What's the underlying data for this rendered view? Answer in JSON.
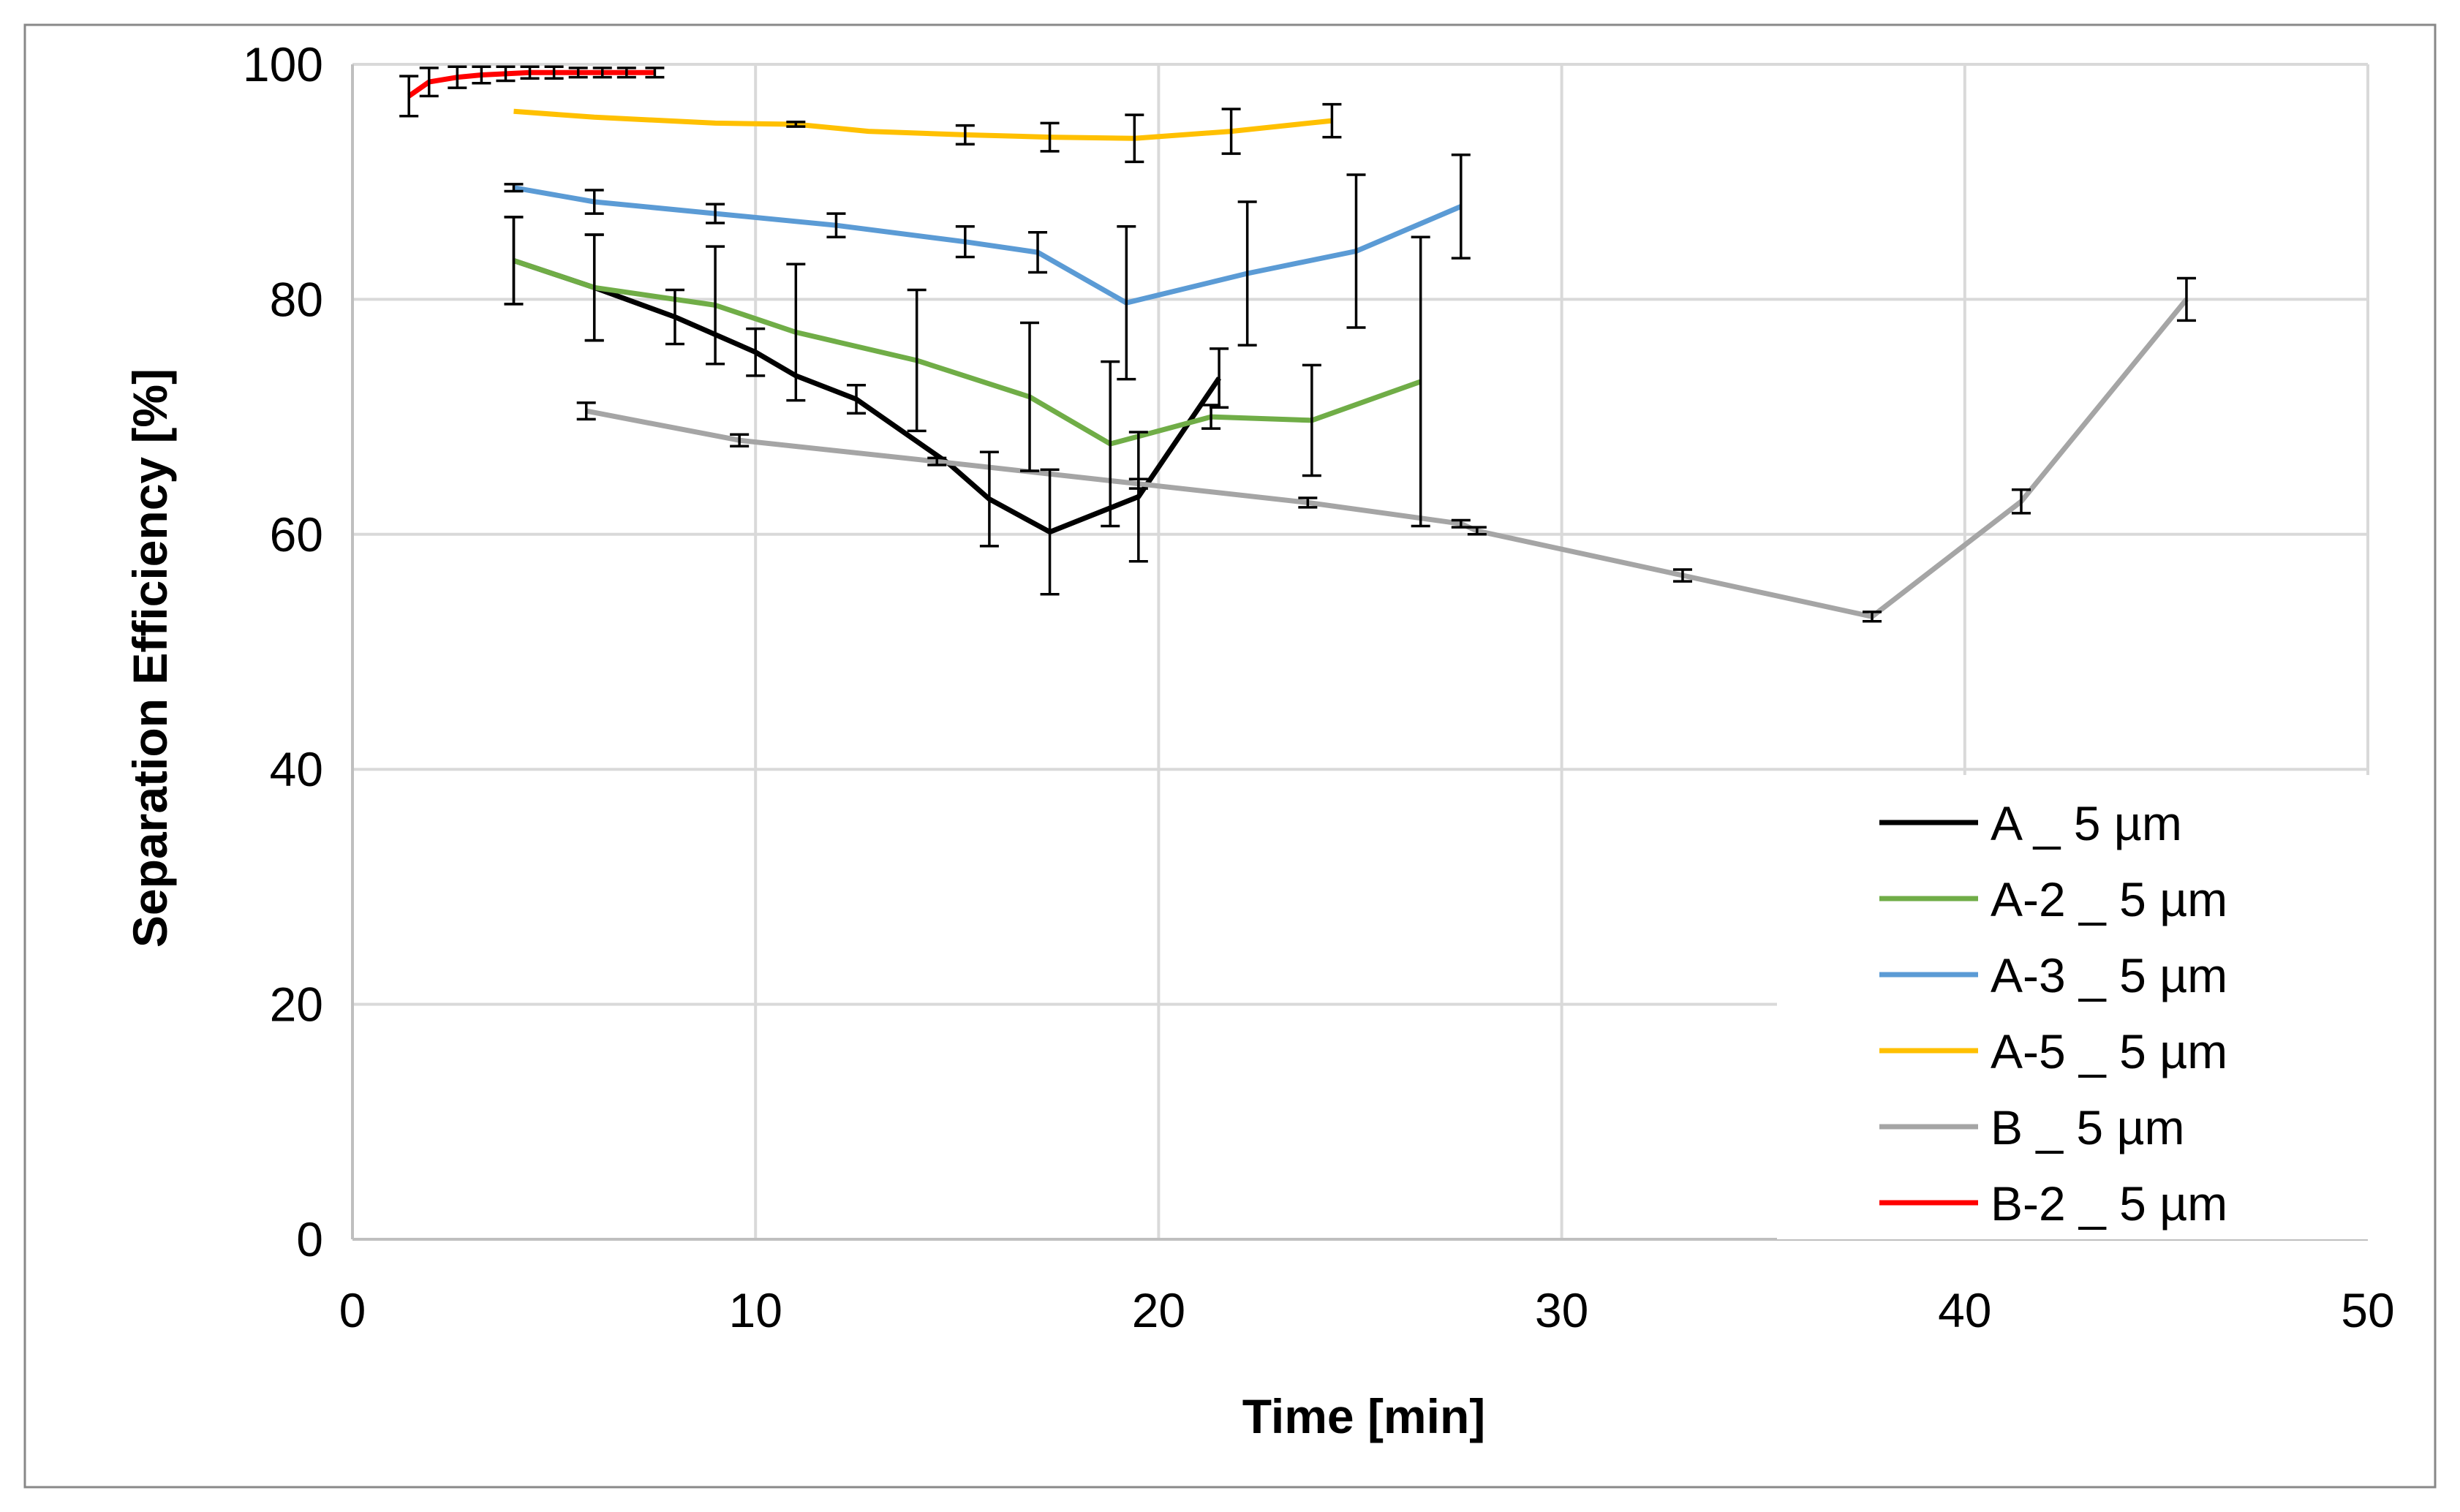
{
  "chart_data": {
    "type": "line",
    "title": "",
    "xlabel": "Time [min]",
    "ylabel": "Separation Efficiency [%]",
    "xlim": [
      0,
      50
    ],
    "ylim": [
      0,
      100
    ],
    "xticks": [
      0,
      10,
      20,
      30,
      40,
      50
    ],
    "yticks": [
      0,
      20,
      40,
      60,
      80,
      100
    ],
    "grid": true,
    "legend_position": "bottom-right",
    "error_bars": true,
    "series": [
      {
        "name": "A _ 5 µm",
        "color": "#000000",
        "points": [
          {
            "x": 4.0,
            "y": 83.3,
            "err": 3.7
          },
          {
            "x": 6.0,
            "y": 81.0,
            "err": 4.5
          },
          {
            "x": 8.0,
            "y": 78.5,
            "err": 2.3
          },
          {
            "x": 10.0,
            "y": 75.5,
            "err": 2.0
          },
          {
            "x": 11.0,
            "y": 73.5,
            "err": 0
          },
          {
            "x": 12.5,
            "y": 71.5,
            "err": 1.2
          },
          {
            "x": 14.8,
            "y": 66.0,
            "err": 0
          },
          {
            "x": 15.8,
            "y": 63.0,
            "err": 4.0
          },
          {
            "x": 17.3,
            "y": 60.2,
            "err": 5.3
          },
          {
            "x": 19.5,
            "y": 63.2,
            "err": 5.5
          },
          {
            "x": 21.5,
            "y": 73.3,
            "err": 2.5
          }
        ]
      },
      {
        "name": "A-2 _ 5 µm",
        "color": "#70AD47",
        "points": [
          {
            "x": 4.0,
            "y": 83.3,
            "err": 3.7
          },
          {
            "x": 6.0,
            "y": 81.0,
            "err": 4.5
          },
          {
            "x": 9.0,
            "y": 79.5,
            "err": 5.0
          },
          {
            "x": 11.0,
            "y": 77.2,
            "err": 5.8
          },
          {
            "x": 14.0,
            "y": 74.8,
            "err": 6.0
          },
          {
            "x": 16.8,
            "y": 71.7,
            "err": 6.3
          },
          {
            "x": 18.8,
            "y": 67.7,
            "err": 7.0
          },
          {
            "x": 21.3,
            "y": 70.0,
            "err": 1.0
          },
          {
            "x": 23.8,
            "y": 69.7,
            "err": 4.7
          },
          {
            "x": 26.5,
            "y": 73.0,
            "err": 12.3
          }
        ]
      },
      {
        "name": "A-3 _ 5 µm",
        "color": "#5B9BD5",
        "points": [
          {
            "x": 4.0,
            "y": 89.5,
            "err": 0.3
          },
          {
            "x": 6.0,
            "y": 88.3,
            "err": 1.0
          },
          {
            "x": 9.0,
            "y": 87.3,
            "err": 0.8
          },
          {
            "x": 12.0,
            "y": 86.3,
            "err": 1.0
          },
          {
            "x": 15.2,
            "y": 84.9,
            "err": 1.3
          },
          {
            "x": 17.0,
            "y": 84.0,
            "err": 1.7
          },
          {
            "x": 19.2,
            "y": 79.7,
            "err": 6.5
          },
          {
            "x": 22.2,
            "y": 82.2,
            "err": 6.1
          },
          {
            "x": 24.9,
            "y": 84.1,
            "err": 6.5
          },
          {
            "x": 27.5,
            "y": 87.9,
            "err": 4.4
          }
        ]
      },
      {
        "name": "A-5 _ 5 µm",
        "color": "#FFC000",
        "points": [
          {
            "x": 4.0,
            "y": 96.0,
            "err": 0
          },
          {
            "x": 6.0,
            "y": 95.5,
            "err": 0
          },
          {
            "x": 9.0,
            "y": 95.0,
            "err": 0
          },
          {
            "x": 11.0,
            "y": 94.9,
            "err": 0.2
          },
          {
            "x": 12.8,
            "y": 94.3,
            "err": 0
          },
          {
            "x": 15.2,
            "y": 94.0,
            "err": 0.8
          },
          {
            "x": 17.3,
            "y": 93.8,
            "err": 1.2
          },
          {
            "x": 19.4,
            "y": 93.7,
            "err": 2.0
          },
          {
            "x": 21.8,
            "y": 94.3,
            "err": 1.9
          },
          {
            "x": 24.3,
            "y": 95.2,
            "err": 1.4
          }
        ]
      },
      {
        "name": "B _ 5 µm",
        "color": "#A5A5A5",
        "points": [
          {
            "x": 5.8,
            "y": 70.5,
            "err": 0.7
          },
          {
            "x": 9.6,
            "y": 68.0,
            "err": 0.5
          },
          {
            "x": 14.5,
            "y": 66.2,
            "err": 0.3
          },
          {
            "x": 19.5,
            "y": 64.3,
            "err": 0.4
          },
          {
            "x": 23.7,
            "y": 62.7,
            "err": 0.4
          },
          {
            "x": 27.5,
            "y": 60.9,
            "err": 0.3
          },
          {
            "x": 27.5,
            "y": 60.9,
            "err": 0
          },
          {
            "x": 27.9,
            "y": 60.3,
            "err": 0.3
          },
          {
            "x": 33.0,
            "y": 56.5,
            "err": 0.5
          },
          {
            "x": 37.7,
            "y": 53.0,
            "err": 0.4
          },
          {
            "x": 41.4,
            "y": 62.8,
            "err": 1.0
          },
          {
            "x": 45.5,
            "y": 80.0,
            "err": 1.8
          }
        ]
      },
      {
        "name": "B-2 _ 5 µm",
        "color": "#FF0000",
        "points": [
          {
            "x": 1.4,
            "y": 97.3,
            "err": 1.7
          },
          {
            "x": 1.9,
            "y": 98.5,
            "err": 1.2
          },
          {
            "x": 2.6,
            "y": 98.9,
            "err": 0.9
          },
          {
            "x": 3.2,
            "y": 99.1,
            "err": 0.7
          },
          {
            "x": 3.8,
            "y": 99.2,
            "err": 0.6
          },
          {
            "x": 4.4,
            "y": 99.3,
            "err": 0.5
          },
          {
            "x": 5.0,
            "y": 99.3,
            "err": 0.5
          },
          {
            "x": 5.6,
            "y": 99.3,
            "err": 0.4
          },
          {
            "x": 6.2,
            "y": 99.3,
            "err": 0.4
          },
          {
            "x": 6.8,
            "y": 99.3,
            "err": 0.4
          },
          {
            "x": 7.5,
            "y": 99.3,
            "err": 0.4
          }
        ]
      }
    ]
  }
}
